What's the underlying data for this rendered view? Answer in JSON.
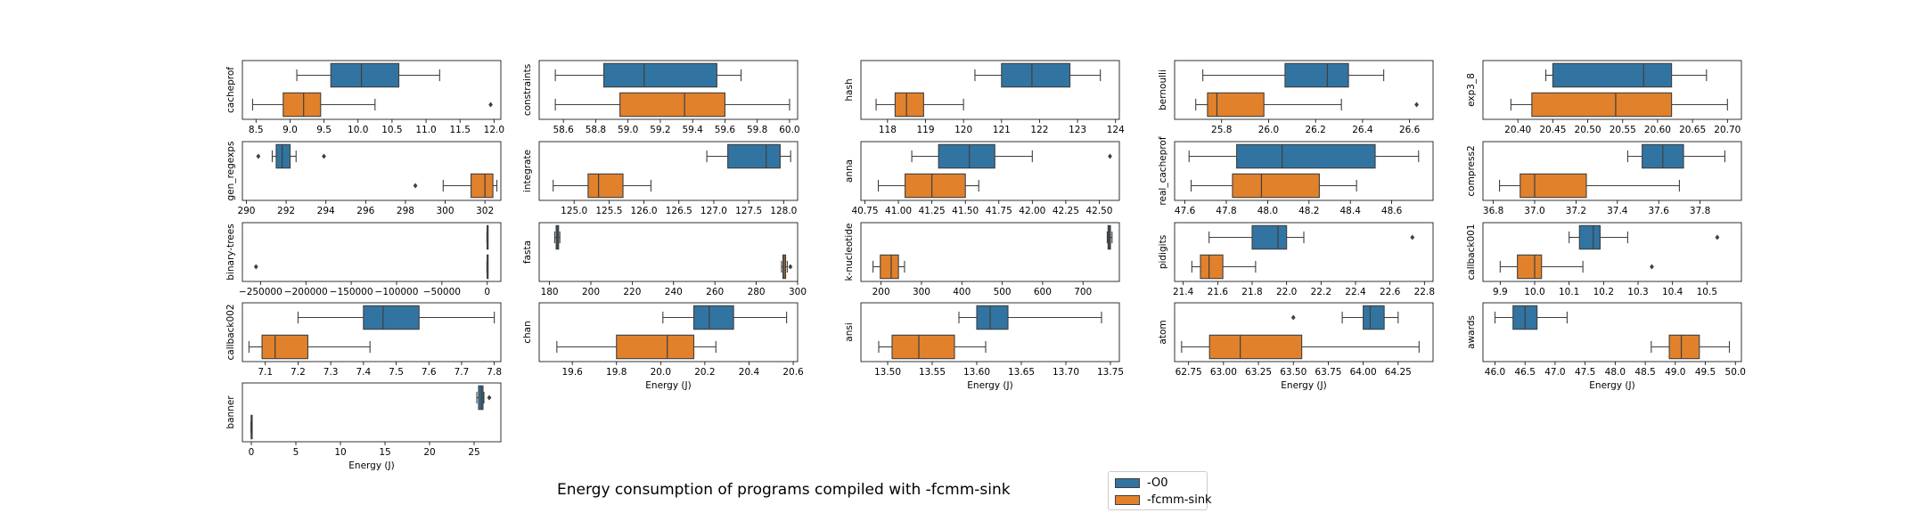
{
  "title": "Energy consumption of programs compiled with -fcmm-sink",
  "legend": [
    {
      "label": "-O0",
      "color": "#3274a1"
    },
    {
      "label": "-fcmm-sink",
      "color": "#e1812c"
    }
  ],
  "chart_data": [
    {
      "type": "box",
      "name": "cacheprof",
      "xlim": [
        8.3,
        12.1
      ],
      "xticks": [
        8.5,
        9.0,
        9.5,
        10.0,
        10.5,
        11.0,
        11.5,
        12.0
      ],
      "ticklabels": [
        "8.5",
        "9.0",
        "9.5",
        "10.0",
        "10.5",
        "11.0",
        "11.5",
        "12.0"
      ],
      "xlabel": "",
      "series": [
        {
          "name": "-O0",
          "whislo": 9.1,
          "q1": 9.6,
          "med": 10.05,
          "q3": 10.6,
          "whishi": 11.2,
          "fliers": []
        },
        {
          "name": "-fcmm-sink",
          "whislo": 8.45,
          "q1": 8.9,
          "med": 9.2,
          "q3": 9.45,
          "whishi": 10.25,
          "fliers": [
            11.95
          ]
        }
      ]
    },
    {
      "type": "box",
      "name": "constraints",
      "xlim": [
        58.45,
        60.05
      ],
      "xticks": [
        58.6,
        58.8,
        59.0,
        59.2,
        59.4,
        59.6,
        59.8,
        60.0
      ],
      "ticklabels": [
        "58.6",
        "58.8",
        "59.0",
        "59.2",
        "59.4",
        "59.6",
        "59.8",
        "60.0"
      ],
      "xlabel": "",
      "series": [
        {
          "name": "-O0",
          "whislo": 58.55,
          "q1": 58.85,
          "med": 59.1,
          "q3": 59.55,
          "whishi": 59.7,
          "fliers": []
        },
        {
          "name": "-fcmm-sink",
          "whislo": 58.55,
          "q1": 58.95,
          "med": 59.35,
          "q3": 59.6,
          "whishi": 60.0,
          "fliers": []
        }
      ]
    },
    {
      "type": "box",
      "name": "hash",
      "xlim": [
        117.3,
        124.1
      ],
      "xticks": [
        118,
        119,
        120,
        121,
        122,
        123,
        124
      ],
      "ticklabels": [
        "118",
        "119",
        "120",
        "121",
        "122",
        "123",
        "124"
      ],
      "xlabel": "",
      "series": [
        {
          "name": "-O0",
          "whislo": 120.3,
          "q1": 121.0,
          "med": 121.8,
          "q3": 122.8,
          "whishi": 123.6,
          "fliers": []
        },
        {
          "name": "-fcmm-sink",
          "whislo": 117.7,
          "q1": 118.2,
          "med": 118.5,
          "q3": 118.95,
          "whishi": 120.0,
          "fliers": []
        }
      ]
    },
    {
      "type": "box",
      "name": "bernoulli",
      "xlim": [
        25.6,
        26.7
      ],
      "xticks": [
        25.8,
        26.0,
        26.2,
        26.4,
        26.6
      ],
      "ticklabels": [
        "25.8",
        "26.0",
        "26.2",
        "26.4",
        "26.6"
      ],
      "xlabel": "",
      "series": [
        {
          "name": "-O0",
          "whislo": 25.72,
          "q1": 26.07,
          "med": 26.25,
          "q3": 26.34,
          "whishi": 26.49,
          "fliers": []
        },
        {
          "name": "-fcmm-sink",
          "whislo": 25.69,
          "q1": 25.74,
          "med": 25.78,
          "q3": 25.98,
          "whishi": 26.31,
          "fliers": [
            26.63
          ]
        }
      ]
    },
    {
      "type": "box",
      "name": "exp3_8",
      "xlim": [
        20.35,
        20.72
      ],
      "xticks": [
        20.4,
        20.45,
        20.5,
        20.55,
        20.6,
        20.65,
        20.7
      ],
      "ticklabels": [
        "20.40",
        "20.45",
        "20.50",
        "20.55",
        "20.60",
        "20.65",
        "20.70"
      ],
      "xlabel": "",
      "series": [
        {
          "name": "-O0",
          "whislo": 20.44,
          "q1": 20.45,
          "med": 20.58,
          "q3": 20.62,
          "whishi": 20.67,
          "fliers": []
        },
        {
          "name": "-fcmm-sink",
          "whislo": 20.39,
          "q1": 20.42,
          "med": 20.54,
          "q3": 20.62,
          "whishi": 20.7,
          "fliers": []
        }
      ]
    },
    {
      "type": "box",
      "name": "gen_regexps",
      "xlim": [
        289.8,
        302.8
      ],
      "xticks": [
        290,
        292,
        294,
        296,
        298,
        300,
        302
      ],
      "ticklabels": [
        "290",
        "292",
        "294",
        "296",
        "298",
        "300",
        "302"
      ],
      "xlabel": "",
      "series": [
        {
          "name": "-O0",
          "whislo": 291.3,
          "q1": 291.5,
          "med": 291.8,
          "q3": 292.2,
          "whishi": 292.5,
          "fliers": [
            290.6,
            293.9
          ]
        },
        {
          "name": "-fcmm-sink",
          "whislo": 299.9,
          "q1": 301.3,
          "med": 302.0,
          "q3": 302.4,
          "whishi": 302.6,
          "fliers": [
            298.5
          ]
        }
      ]
    },
    {
      "type": "box",
      "name": "integrate",
      "xlim": [
        124.5,
        128.2
      ],
      "xticks": [
        125.0,
        125.5,
        126.0,
        126.5,
        127.0,
        127.5,
        128.0
      ],
      "ticklabels": [
        "125.0",
        "125.5",
        "126.0",
        "126.5",
        "127.0",
        "127.5",
        "128.0"
      ],
      "xlabel": "",
      "series": [
        {
          "name": "-O0",
          "whislo": 126.9,
          "q1": 127.2,
          "med": 127.75,
          "q3": 127.95,
          "whishi": 128.1,
          "fliers": []
        },
        {
          "name": "-fcmm-sink",
          "whislo": 124.7,
          "q1": 125.2,
          "med": 125.35,
          "q3": 125.7,
          "whishi": 126.1,
          "fliers": []
        }
      ]
    },
    {
      "type": "box",
      "name": "anna",
      "xlim": [
        40.72,
        42.65
      ],
      "xticks": [
        40.75,
        41.0,
        41.25,
        41.5,
        41.75,
        42.0,
        42.25,
        42.5
      ],
      "ticklabels": [
        "40.75",
        "41.00",
        "41.25",
        "41.50",
        "41.75",
        "42.00",
        "42.25",
        "42.50"
      ],
      "xlabel": "",
      "series": [
        {
          "name": "-O0",
          "whislo": 41.1,
          "q1": 41.3,
          "med": 41.53,
          "q3": 41.72,
          "whishi": 42.0,
          "fliers": [
            42.58
          ]
        },
        {
          "name": "-fcmm-sink",
          "whislo": 40.85,
          "q1": 41.05,
          "med": 41.25,
          "q3": 41.5,
          "whishi": 41.6,
          "fliers": []
        }
      ]
    },
    {
      "type": "box",
      "name": "real_cacheprof",
      "xlim": [
        47.55,
        48.8
      ],
      "xticks": [
        47.6,
        47.8,
        48.0,
        48.2,
        48.4,
        48.6
      ],
      "ticklabels": [
        "47.6",
        "47.8",
        "48.0",
        "48.2",
        "48.4",
        "48.6"
      ],
      "xlabel": "",
      "series": [
        {
          "name": "-O0",
          "whislo": 47.62,
          "q1": 47.85,
          "med": 48.07,
          "q3": 48.52,
          "whishi": 48.73,
          "fliers": []
        },
        {
          "name": "-fcmm-sink",
          "whislo": 47.63,
          "q1": 47.83,
          "med": 47.97,
          "q3": 48.25,
          "whishi": 48.43,
          "fliers": []
        }
      ]
    },
    {
      "type": "box",
      "name": "compress2",
      "xlim": [
        36.75,
        38.0
      ],
      "xticks": [
        36.8,
        37.0,
        37.2,
        37.4,
        37.6,
        37.8
      ],
      "ticklabels": [
        "36.8",
        "37.0",
        "37.2",
        "37.4",
        "37.6",
        "37.8"
      ],
      "xlabel": "",
      "series": [
        {
          "name": "-O0",
          "whislo": 37.45,
          "q1": 37.52,
          "med": 37.62,
          "q3": 37.72,
          "whishi": 37.92,
          "fliers": []
        },
        {
          "name": "-fcmm-sink",
          "whislo": 36.83,
          "q1": 36.93,
          "med": 37.0,
          "q3": 37.25,
          "whishi": 37.7,
          "fliers": []
        }
      ]
    },
    {
      "type": "box",
      "name": "binary-trees",
      "xlim": [
        -270000,
        15000
      ],
      "xticks": [
        -250000,
        -200000,
        -150000,
        -100000,
        -50000,
        0
      ],
      "ticklabels": [
        "−250000",
        "−200000",
        "−150000",
        "−100000",
        "−50000",
        "0"
      ],
      "xlabel": "",
      "series": [
        {
          "name": "-O0",
          "whislo": -400,
          "q1": -200,
          "med": 0,
          "q3": 200,
          "whishi": 400,
          "fliers": []
        },
        {
          "name": "-fcmm-sink",
          "whislo": -400,
          "q1": -200,
          "med": 0,
          "q3": 200,
          "whishi": 400,
          "fliers": [
            -255000
          ]
        }
      ]
    },
    {
      "type": "box",
      "name": "fasta",
      "xlim": [
        175,
        300
      ],
      "xticks": [
        180,
        200,
        220,
        240,
        260,
        280,
        300
      ],
      "ticklabels": [
        "180",
        "200",
        "220",
        "240",
        "260",
        "280",
        "300"
      ],
      "xlabel": "",
      "series": [
        {
          "name": "-O0",
          "whislo": 182.5,
          "q1": 183.2,
          "med": 183.8,
          "q3": 184.4,
          "whishi": 185.0,
          "fliers": []
        },
        {
          "name": "-fcmm-sink",
          "whislo": 292.2,
          "q1": 292.9,
          "med": 293.5,
          "q3": 294.2,
          "whishi": 295.0,
          "fliers": [
            296.5
          ]
        }
      ]
    },
    {
      "type": "box",
      "name": "k-nucleotide",
      "xlim": [
        150,
        790
      ],
      "xticks": [
        200,
        300,
        400,
        500,
        600,
        700
      ],
      "ticklabels": [
        "200",
        "300",
        "400",
        "500",
        "600",
        "700"
      ],
      "xlabel": "",
      "series": [
        {
          "name": "-O0",
          "whislo": 760,
          "q1": 762,
          "med": 765,
          "q3": 768,
          "whishi": 772,
          "fliers": []
        },
        {
          "name": "-fcmm-sink",
          "whislo": 180,
          "q1": 198,
          "med": 225,
          "q3": 243,
          "whishi": 258,
          "fliers": []
        }
      ]
    },
    {
      "type": "box",
      "name": "pidigits",
      "xlim": [
        21.35,
        22.85
      ],
      "xticks": [
        21.4,
        21.6,
        21.8,
        22.0,
        22.2,
        22.4,
        22.6,
        22.8
      ],
      "ticklabels": [
        "21.4",
        "21.6",
        "21.8",
        "22.0",
        "22.2",
        "22.4",
        "22.6",
        "22.8"
      ],
      "xlabel": "",
      "series": [
        {
          "name": "-O0",
          "whislo": 21.55,
          "q1": 21.8,
          "med": 21.95,
          "q3": 22.0,
          "whishi": 22.1,
          "fliers": [
            22.73
          ]
        },
        {
          "name": "-fcmm-sink",
          "whislo": 21.45,
          "q1": 21.5,
          "med": 21.55,
          "q3": 21.63,
          "whishi": 21.82,
          "fliers": []
        }
      ]
    },
    {
      "type": "box",
      "name": "callback001",
      "xlim": [
        9.85,
        10.6
      ],
      "xticks": [
        9.9,
        10.0,
        10.1,
        10.2,
        10.3,
        10.4,
        10.5
      ],
      "ticklabels": [
        "9.9",
        "10.0",
        "10.1",
        "10.2",
        "10.3",
        "10.4",
        "10.5"
      ],
      "xlabel": "",
      "series": [
        {
          "name": "-O0",
          "whislo": 10.1,
          "q1": 10.13,
          "med": 10.17,
          "q3": 10.19,
          "whishi": 10.27,
          "fliers": [
            10.53
          ]
        },
        {
          "name": "-fcmm-sink",
          "whislo": 9.9,
          "q1": 9.95,
          "med": 10.0,
          "q3": 10.02,
          "whishi": 10.14,
          "fliers": [
            10.34
          ]
        }
      ]
    },
    {
      "type": "box",
      "name": "callback002",
      "xlim": [
        7.03,
        7.82
      ],
      "xticks": [
        7.1,
        7.2,
        7.3,
        7.4,
        7.5,
        7.6,
        7.7,
        7.8
      ],
      "ticklabels": [
        "7.1",
        "7.2",
        "7.3",
        "7.4",
        "7.5",
        "7.6",
        "7.7",
        "7.8"
      ],
      "xlabel": "",
      "series": [
        {
          "name": "-O0",
          "whislo": 7.2,
          "q1": 7.4,
          "med": 7.46,
          "q3": 7.57,
          "whishi": 7.8,
          "fliers": []
        },
        {
          "name": "-fcmm-sink",
          "whislo": 7.05,
          "q1": 7.09,
          "med": 7.13,
          "q3": 7.23,
          "whishi": 7.42,
          "fliers": []
        }
      ]
    },
    {
      "type": "box",
      "name": "chan",
      "xlim": [
        19.45,
        20.62
      ],
      "xticks": [
        19.6,
        19.8,
        20.0,
        20.2,
        20.4,
        20.6
      ],
      "ticklabels": [
        "19.6",
        "19.8",
        "20.0",
        "20.2",
        "20.4",
        "20.6"
      ],
      "xlabel": "Energy (J)",
      "series": [
        {
          "name": "-O0",
          "whislo": 20.01,
          "q1": 20.15,
          "med": 20.22,
          "q3": 20.33,
          "whishi": 20.57,
          "fliers": []
        },
        {
          "name": "-fcmm-sink",
          "whislo": 19.53,
          "q1": 19.8,
          "med": 20.03,
          "q3": 20.15,
          "whishi": 20.25,
          "fliers": []
        }
      ]
    },
    {
      "type": "box",
      "name": "ansi",
      "xlim": [
        13.47,
        13.76
      ],
      "xticks": [
        13.5,
        13.55,
        13.6,
        13.65,
        13.7,
        13.75
      ],
      "ticklabels": [
        "13.50",
        "13.55",
        "13.60",
        "13.65",
        "13.70",
        "13.75"
      ],
      "xlabel": "Energy (J)",
      "series": [
        {
          "name": "-O0",
          "whislo": 13.58,
          "q1": 13.6,
          "med": 13.615,
          "q3": 13.635,
          "whishi": 13.74,
          "fliers": []
        },
        {
          "name": "-fcmm-sink",
          "whislo": 13.49,
          "q1": 13.505,
          "med": 13.535,
          "q3": 13.575,
          "whishi": 13.61,
          "fliers": []
        }
      ]
    },
    {
      "type": "box",
      "name": "atom",
      "xlim": [
        62.65,
        64.5
      ],
      "xticks": [
        62.75,
        63.0,
        63.25,
        63.5,
        63.75,
        64.0,
        64.25
      ],
      "ticklabels": [
        "62.75",
        "63.00",
        "63.25",
        "63.50",
        "63.75",
        "64.00",
        "64.25"
      ],
      "xlabel": "Energy (J)",
      "series": [
        {
          "name": "-O0",
          "whislo": 63.85,
          "q1": 64.0,
          "med": 64.05,
          "q3": 64.15,
          "whishi": 64.25,
          "fliers": [
            63.5
          ]
        },
        {
          "name": "-fcmm-sink",
          "whislo": 62.7,
          "q1": 62.9,
          "med": 63.12,
          "q3": 63.56,
          "whishi": 64.4,
          "fliers": []
        }
      ]
    },
    {
      "type": "box",
      "name": "awards",
      "xlim": [
        45.8,
        50.1
      ],
      "xticks": [
        46.0,
        46.5,
        47.0,
        47.5,
        48.0,
        48.5,
        49.0,
        49.5,
        50.0
      ],
      "ticklabels": [
        "46.0",
        "46.5",
        "47.0",
        "47.5",
        "48.0",
        "48.5",
        "49.0",
        "49.5",
        "50.0"
      ],
      "xlabel": "Energy (J)",
      "series": [
        {
          "name": "-O0",
          "whislo": 46.0,
          "q1": 46.3,
          "med": 46.5,
          "q3": 46.7,
          "whishi": 47.2,
          "fliers": []
        },
        {
          "name": "-fcmm-sink",
          "whislo": 48.6,
          "q1": 48.9,
          "med": 49.1,
          "q3": 49.4,
          "whishi": 49.9,
          "fliers": []
        }
      ]
    },
    {
      "type": "box",
      "name": "banner",
      "xlim": [
        -1,
        28
      ],
      "xticks": [
        0,
        5,
        10,
        15,
        20,
        25
      ],
      "ticklabels": [
        "0",
        "5",
        "10",
        "15",
        "20",
        "25"
      ],
      "xlabel": "Energy (J)",
      "series": [
        {
          "name": "-O0",
          "whislo": 25.3,
          "q1": 25.5,
          "med": 25.8,
          "q3": 26.0,
          "whishi": 26.1,
          "fliers": [
            26.7
          ]
        },
        {
          "name": "-fcmm-sink",
          "whislo": -0.05,
          "q1": -0.02,
          "med": 0,
          "q3": 0.02,
          "whishi": 0.05,
          "fliers": []
        }
      ]
    }
  ]
}
